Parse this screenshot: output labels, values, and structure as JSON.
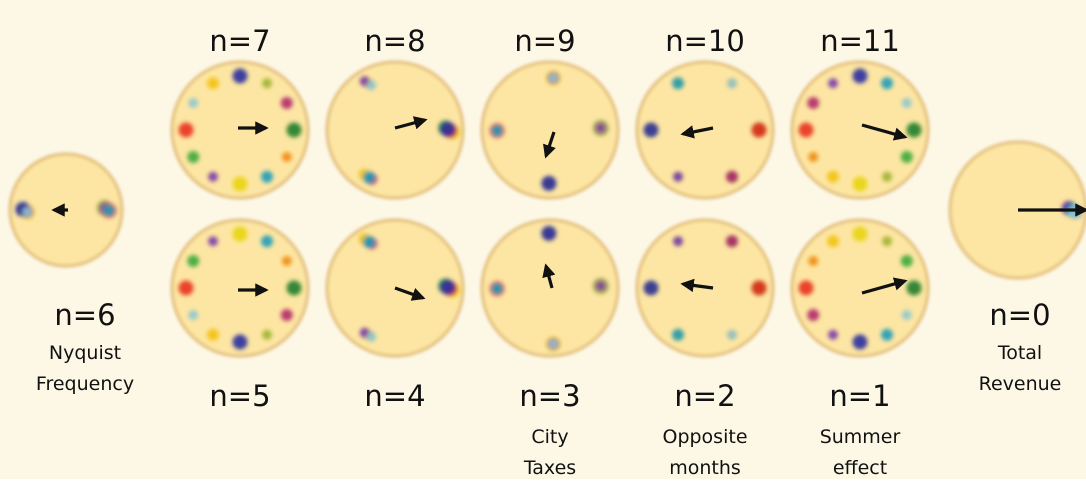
{
  "colors": {
    "background": "#fdf8e6",
    "disc_fill": "#fde6a3",
    "disc_edge": "#e2bd7a",
    "arrow": "#111111",
    "months": [
      "#1f7d2a",
      "#3aa83a",
      "#9cb12c",
      "#e8d410",
      "#f2c20e",
      "#f08a10",
      "#e8321e",
      "#b3286a",
      "#7a3aa8",
      "#2a2fa0",
      "#1f9bb8",
      "#8fc6cf"
    ]
  },
  "pairs": [
    {
      "top": "n=7",
      "bottom": "n=5"
    },
    {
      "top": "n=8",
      "bottom": "n=4"
    },
    {
      "top": "n=9",
      "bottom": "n=3",
      "bottom_caption": [
        "City",
        "Taxes"
      ]
    },
    {
      "top": "n=10",
      "bottom": "n=2",
      "bottom_caption": [
        "Opposite",
        "months"
      ]
    },
    {
      "top": "n=11",
      "bottom": "n=1",
      "bottom_caption": [
        "Summer",
        "effect"
      ]
    }
  ],
  "left": {
    "label": "n=6",
    "caption": [
      "Nyquist",
      "Frequency"
    ]
  },
  "right": {
    "label": "n=0",
    "caption": [
      "Total",
      "Revenue"
    ]
  }
}
